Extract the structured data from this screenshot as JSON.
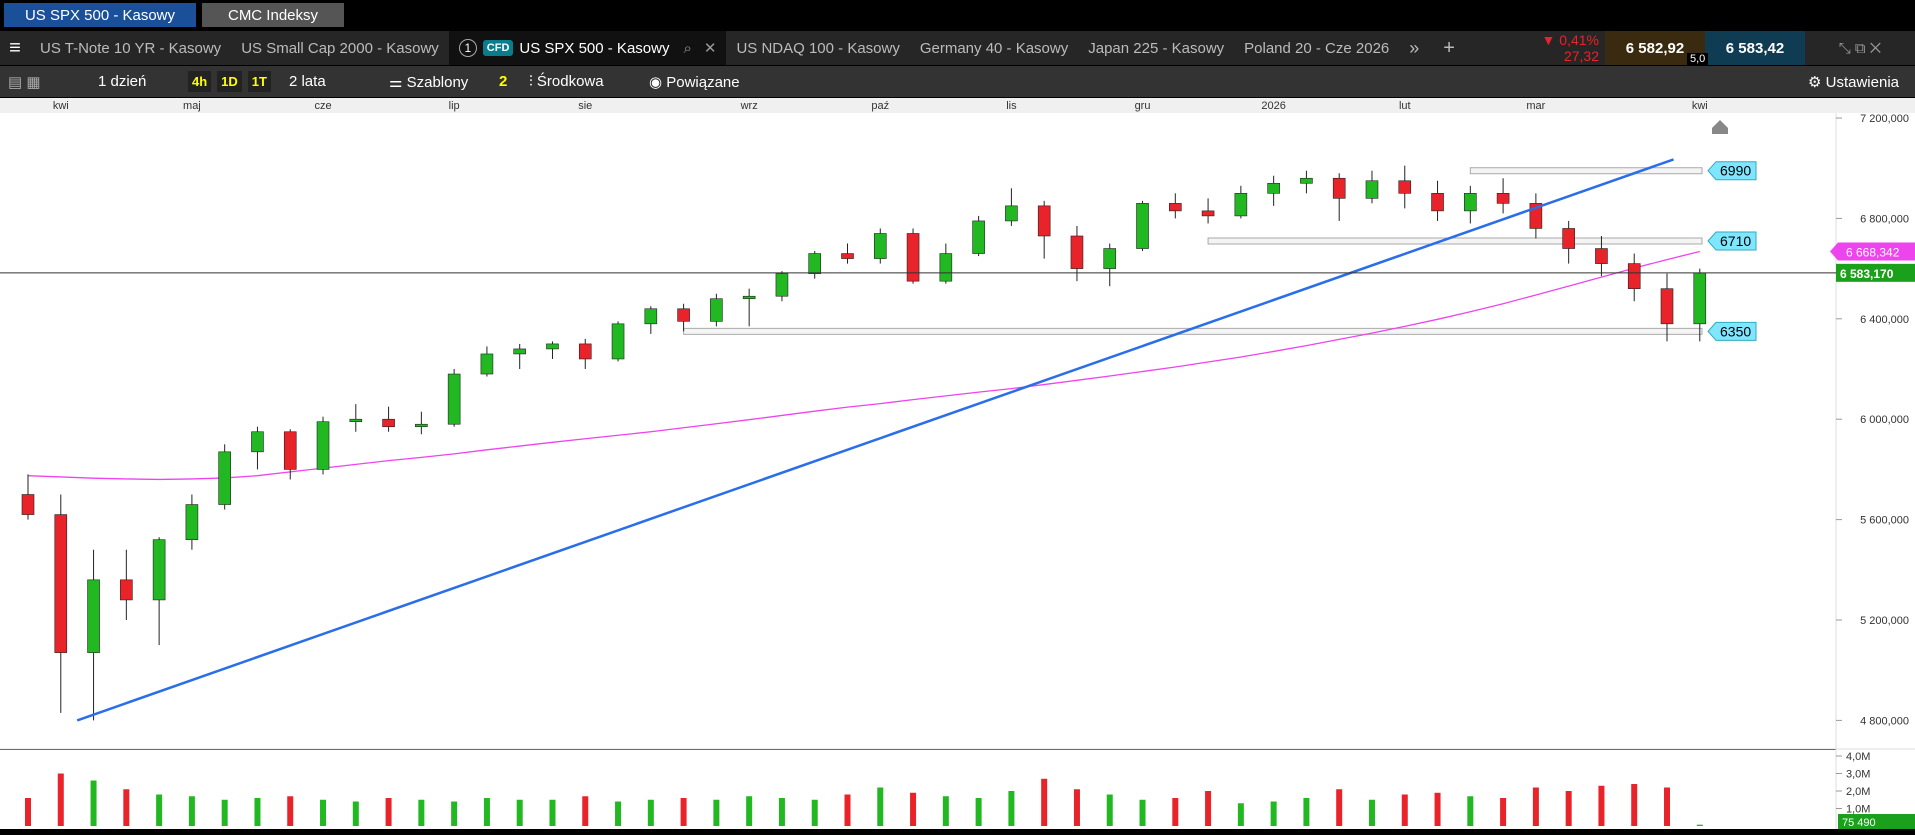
{
  "top_tabs": [
    "US SPX 500 - Kasowy",
    "CMC Indeksy"
  ],
  "instrument_tabs": [
    "US T-Note 10 YR - Kasowy",
    "US Small Cap 2000 - Kasowy"
  ],
  "active_tab": {
    "number": "1",
    "badge": "CFD",
    "name": "US SPX 500 - Kasowy"
  },
  "more_tabs": [
    "US NDAQ 100 - Kasowy",
    "Germany 40 - Kasowy",
    "Japan 225 - Kasowy",
    "Poland 20 - Cze 2026"
  ],
  "quote": {
    "change_pct": "0,41%",
    "change_pts": "27,32",
    "sell": "6 582,92",
    "buy": "6 583,42",
    "spread": "5,0"
  },
  "toolbar": {
    "interval": "1 dzień",
    "quick": [
      "4h",
      "1D",
      "1T"
    ],
    "range": "2 lata",
    "templates": "Szablony",
    "count": "2",
    "price_type": "Środkowa",
    "related": "Powiązane",
    "settings": "Ustawienia"
  },
  "chart_data": {
    "type": "candlestick",
    "categories": [
      null,
      "kwi",
      null,
      null,
      null,
      "maj",
      null,
      null,
      null,
      "cze",
      null,
      null,
      null,
      "lip",
      null,
      null,
      null,
      "sie",
      null,
      null,
      null,
      null,
      "wrz",
      null,
      null,
      null,
      "paź",
      null,
      null,
      null,
      "lis",
      null,
      null,
      null,
      "gru",
      null,
      null,
      null,
      "2026",
      null,
      null,
      null,
      "lut",
      null,
      null,
      null,
      "mar",
      null,
      null,
      null,
      null,
      "kwi"
    ],
    "open": [
      5700,
      5620,
      5070,
      5360,
      5280,
      5520,
      5660,
      5870,
      5950,
      5800,
      5990,
      6000,
      5970,
      5980,
      6180,
      6260,
      6280,
      6300,
      6240,
      6380,
      6440,
      6390,
      6480,
      6490,
      6580,
      6660,
      6640,
      6740,
      6550,
      6660,
      6790,
      6850,
      6730,
      6600,
      6680,
      6860,
      6830,
      6810,
      6900,
      6940,
      6960,
      6880,
      6950,
      6900,
      6830,
      6900,
      6860,
      6760,
      6680,
      6620,
      6520,
      6380
    ],
    "high": [
      5780,
      5700,
      5480,
      5480,
      5530,
      5700,
      5900,
      5970,
      5960,
      6010,
      6060,
      6050,
      6030,
      6200,
      6290,
      6300,
      6310,
      6320,
      6390,
      6450,
      6460,
      6500,
      6520,
      6590,
      6670,
      6700,
      6760,
      6760,
      6700,
      6810,
      6920,
      6870,
      6770,
      6700,
      6870,
      6900,
      6880,
      6930,
      6970,
      6990,
      6980,
      6990,
      7010,
      6950,
      6930,
      6960,
      6900,
      6790,
      6730,
      6660,
      6580,
      6600
    ],
    "low": [
      5600,
      4830,
      4800,
      5200,
      5100,
      5480,
      5640,
      5800,
      5760,
      5780,
      5950,
      5950,
      5940,
      5970,
      6170,
      6200,
      6240,
      6200,
      6230,
      6340,
      6350,
      6370,
      6370,
      6470,
      6560,
      6620,
      6620,
      6540,
      6540,
      6650,
      6770,
      6640,
      6550,
      6530,
      6670,
      6800,
      6780,
      6800,
      6850,
      6900,
      6790,
      6860,
      6840,
      6790,
      6780,
      6820,
      6720,
      6620,
      6570,
      6470,
      6310,
      6310
    ],
    "close": [
      5620,
      5070,
      5360,
      5280,
      5520,
      5660,
      5870,
      5950,
      5800,
      5990,
      6000,
      5970,
      5980,
      6180,
      6260,
      6280,
      6300,
      6240,
      6380,
      6440,
      6390,
      6480,
      6490,
      6580,
      6660,
      6640,
      6740,
      6550,
      6660,
      6790,
      6850,
      6730,
      6600,
      6680,
      6860,
      6830,
      6810,
      6900,
      6940,
      6960,
      6880,
      6950,
      6900,
      6830,
      6900,
      6860,
      6760,
      6680,
      6620,
      6520,
      6380,
      6583.17
    ],
    "ma": [
      5775,
      5770,
      5765,
      5762,
      5760,
      5762,
      5766,
      5775,
      5790,
      5805,
      5820,
      5835,
      5848,
      5862,
      5878,
      5893,
      5908,
      5922,
      5936,
      5950,
      5966,
      5982,
      5998,
      6015,
      6032,
      6048,
      6062,
      6078,
      6093,
      6108,
      6122,
      6138,
      6155,
      6172,
      6190,
      6208,
      6228,
      6248,
      6270,
      6293,
      6318,
      6343,
      6370,
      6398,
      6428,
      6460,
      6495,
      6530,
      6566,
      6602,
      6636,
      6668.342
    ],
    "volume": [
      1600000,
      3000000,
      2600000,
      2100000,
      1800000,
      1700000,
      1500000,
      1600000,
      1700000,
      1500000,
      1400000,
      1600000,
      1500000,
      1400000,
      1600000,
      1500000,
      1500000,
      1700000,
      1400000,
      1500000,
      1600000,
      1500000,
      1700000,
      1600000,
      1500000,
      1800000,
      2200000,
      1900000,
      1700000,
      1600000,
      2000000,
      2700000,
      2100000,
      1800000,
      1500000,
      1600000,
      2000000,
      1300000,
      1400000,
      1600000,
      2100000,
      1500000,
      1800000,
      1900000,
      1700000,
      1600000,
      2200000,
      2000000,
      2300000,
      2400000,
      2200000,
      75490
    ],
    "ylim": [
      4690,
      7220
    ],
    "yticks": [
      {
        "value": 4800,
        "label": "4 800,000"
      },
      {
        "value": 5200,
        "label": "5 200,000"
      },
      {
        "value": 5600,
        "label": "5 600,000"
      },
      {
        "value": 6000,
        "label": "6 000,000"
      },
      {
        "value": 6400,
        "label": "6 400,000"
      },
      {
        "value": 6800,
        "label": "6 800,000"
      },
      {
        "value": 7200,
        "label": "7 200,000"
      }
    ],
    "volume_ylim": [
      0,
      4230000
    ],
    "volume_ticks": [
      {
        "value": 1000000,
        "label": "1,0M"
      },
      {
        "value": 2000000,
        "label": "2,0M"
      },
      {
        "value": 3000000,
        "label": "3,0M"
      },
      {
        "value": 4000000,
        "label": "4,0M"
      }
    ],
    "volume_last": {
      "value": 75490,
      "label": "75 490"
    },
    "last_price": {
      "value": 6583.17,
      "label": "6 583,170"
    },
    "ma_last": {
      "value": 6668.342,
      "label": "6 668,342"
    },
    "levels": [
      6990,
      6710,
      6350
    ],
    "level_start": [
      44,
      36,
      20
    ],
    "trendline": {
      "x": [
        1.5,
        50.2
      ],
      "y": [
        4800,
        7035
      ]
    },
    "up_color": "#22b822",
    "down_color": "#e8232a",
    "ma_color": "#ee44ee",
    "trend_color": "#2a6ee8"
  }
}
